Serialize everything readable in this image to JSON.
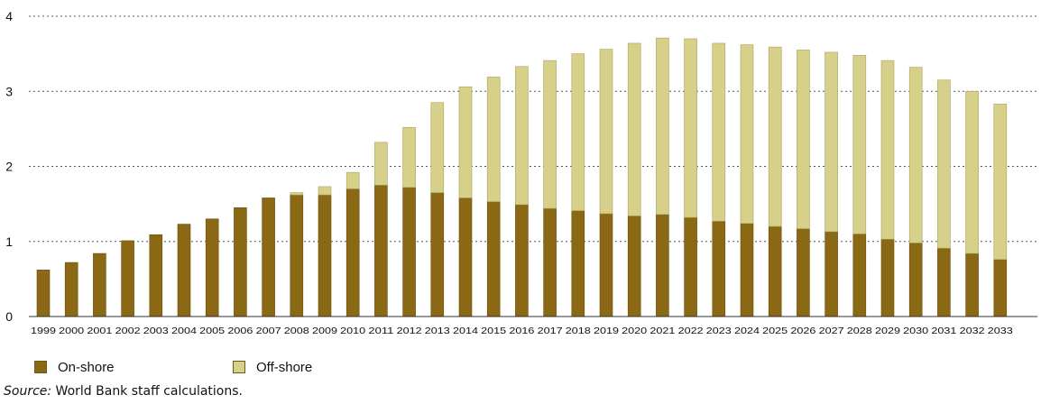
{
  "chart_data": {
    "type": "bar",
    "stacked": true,
    "categories": [
      "1999",
      "2000",
      "2001",
      "2002",
      "2003",
      "2004",
      "2005",
      "2006",
      "2007",
      "2008",
      "2009",
      "2010",
      "2011",
      "2012",
      "2013",
      "2014",
      "2015",
      "2016",
      "2017",
      "2018",
      "2019",
      "2020",
      "2021",
      "2022",
      "2023",
      "2024",
      "2025",
      "2026",
      "2027",
      "2028",
      "2029",
      "2030",
      "2031",
      "2032",
      "2033"
    ],
    "series": [
      {
        "name": "On-shore",
        "color": "#8b6914",
        "values": [
          0.62,
          0.72,
          0.84,
          1.01,
          1.09,
          1.23,
          1.3,
          1.45,
          1.58,
          1.62,
          1.62,
          1.7,
          1.75,
          1.72,
          1.65,
          1.58,
          1.53,
          1.49,
          1.44,
          1.41,
          1.37,
          1.34,
          1.36,
          1.32,
          1.27,
          1.24,
          1.2,
          1.17,
          1.13,
          1.1,
          1.03,
          0.98,
          0.91,
          0.84,
          0.76
        ]
      },
      {
        "name": "Off-shore",
        "color": "#d6d08a",
        "values": [
          0,
          0,
          0,
          0,
          0,
          0,
          0,
          0,
          0,
          0.03,
          0.11,
          0.22,
          0.57,
          0.8,
          1.2,
          1.48,
          1.66,
          1.84,
          1.97,
          2.09,
          2.19,
          2.3,
          2.35,
          2.38,
          2.37,
          2.38,
          2.39,
          2.38,
          2.39,
          2.38,
          2.38,
          2.34,
          2.24,
          2.16,
          2.07
        ]
      }
    ],
    "ylim": [
      0,
      4
    ],
    "yticks": [
      "0",
      "1",
      "2",
      "3",
      "4"
    ],
    "grid": true,
    "legend": [
      "On-shore",
      "Off-shore"
    ],
    "source_label": "Source:",
    "source_text": " World Bank staff calculations."
  }
}
